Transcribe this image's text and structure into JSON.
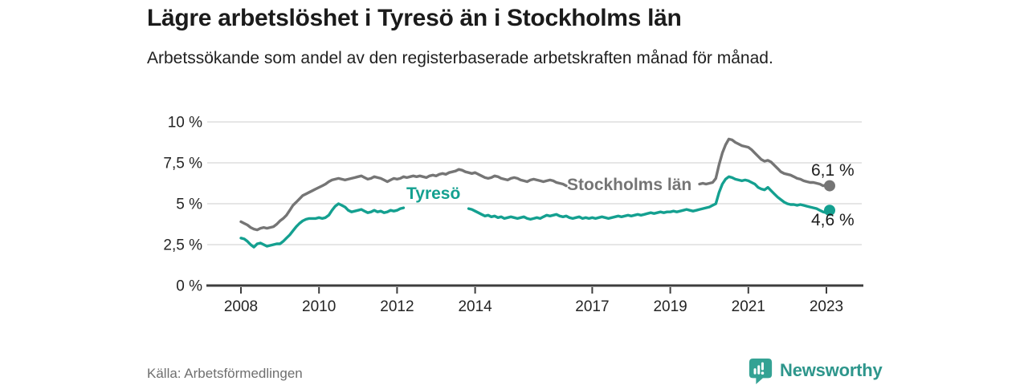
{
  "header": {
    "title": "Lägre arbetslöshet i Tyresö än i Stockholms län",
    "subtitle": "Arbetssökande som andel av den registerbaserade arbetskraften månad för månad."
  },
  "footer": {
    "source": "Källa: Arbetsförmedlingen",
    "logo_text": "Newsworthy",
    "logo_icon": "newsworthy-chart-bubble-icon"
  },
  "colors": {
    "tyreso_line": "#14A090",
    "stockholm_line": "#757575",
    "axis": "#3d3d3d",
    "grid": "#d8d8d8",
    "title_text": "#1b1b1b",
    "muted_text": "#6f6f6f",
    "logo_teal": "#2E968C"
  },
  "chart_data": {
    "type": "line",
    "title": "Lägre arbetslöshet i Tyresö än i Stockholms län",
    "subtitle": "Arbetssökande som andel av den registerbaserade arbetskraften månad för månad.",
    "x_start": {
      "year": 2008,
      "month": 1
    },
    "x_step_months": 1,
    "grid": "horizontal",
    "legend": "inline-labels",
    "style": {
      "grid_color": "#d8d8d8",
      "axis_color": "#3d3d3d",
      "tick_text_color": "#242424"
    },
    "y_axis": {
      "range": [
        0,
        10
      ],
      "ticks": [
        0,
        2.5,
        5,
        7.5,
        10
      ],
      "tick_labels": [
        "0 %",
        "2,5 %",
        "5 %",
        "7,5 %",
        "10 %"
      ]
    },
    "x_axis": {
      "range_years": [
        2007.1,
        2023.95
      ],
      "tick_years": [
        2008,
        2010,
        2012,
        2014,
        2017,
        2019,
        2021,
        2023
      ],
      "tick_labels": [
        "2008",
        "2010",
        "2012",
        "2014",
        "2017",
        "2019",
        "2021",
        "2023"
      ]
    },
    "series": [
      {
        "id": "stockholm",
        "name": "Stockholms län",
        "color": "#757575",
        "end_value": 6.1,
        "end_label": "6,1 %",
        "hidden_behind_label_indices": [
          101,
          140
        ],
        "values": [
          3.9,
          3.8,
          3.7,
          3.55,
          3.45,
          3.4,
          3.5,
          3.55,
          3.5,
          3.55,
          3.6,
          3.75,
          3.95,
          4.1,
          4.3,
          4.6,
          4.9,
          5.1,
          5.3,
          5.5,
          5.6,
          5.7,
          5.8,
          5.9,
          6.0,
          6.1,
          6.2,
          6.35,
          6.45,
          6.5,
          6.55,
          6.5,
          6.45,
          6.5,
          6.55,
          6.6,
          6.65,
          6.7,
          6.6,
          6.5,
          6.55,
          6.65,
          6.6,
          6.55,
          6.45,
          6.35,
          6.45,
          6.55,
          6.5,
          6.55,
          6.65,
          6.6,
          6.65,
          6.7,
          6.65,
          6.7,
          6.65,
          6.6,
          6.7,
          6.75,
          6.7,
          6.8,
          6.85,
          6.8,
          6.9,
          6.95,
          7.0,
          7.1,
          7.05,
          6.95,
          6.9,
          6.85,
          6.9,
          6.8,
          6.7,
          6.6,
          6.55,
          6.6,
          6.7,
          6.65,
          6.55,
          6.5,
          6.45,
          6.55,
          6.6,
          6.55,
          6.45,
          6.4,
          6.35,
          6.45,
          6.5,
          6.45,
          6.4,
          6.35,
          6.4,
          6.45,
          6.4,
          6.3,
          6.25,
          6.2,
          6.1,
          6.05,
          6.0,
          6.0,
          5.95,
          6.0,
          6.0,
          5.95,
          6.0,
          5.95,
          6.0,
          6.05,
          6.0,
          5.95,
          6.0,
          6.05,
          6.0,
          6.0,
          6.05,
          6.0,
          6.0,
          6.05,
          6.0,
          6.0,
          6.05,
          6.1,
          6.05,
          6.0,
          6.05,
          6.1,
          6.1,
          6.05,
          6.1,
          6.1,
          6.05,
          6.1,
          6.15,
          6.1,
          6.15,
          6.2,
          6.15,
          6.2,
          6.25,
          6.2,
          6.25,
          6.3,
          6.55,
          7.4,
          8.1,
          8.6,
          8.95,
          8.9,
          8.75,
          8.65,
          8.55,
          8.5,
          8.45,
          8.3,
          8.1,
          7.9,
          7.7,
          7.6,
          7.65,
          7.55,
          7.35,
          7.15,
          6.95,
          6.85,
          6.8,
          6.75,
          6.65,
          6.55,
          6.5,
          6.4,
          6.35,
          6.3,
          6.3,
          6.25,
          6.2,
          6.1,
          6.15,
          6.1
        ]
      },
      {
        "id": "tyreso",
        "name": "Tyresö",
        "color": "#14A090",
        "end_value": 4.6,
        "end_label": "4,6 %",
        "hidden_behind_label_indices": [
          51,
          69
        ],
        "values": [
          2.9,
          2.85,
          2.7,
          2.5,
          2.35,
          2.55,
          2.6,
          2.5,
          2.4,
          2.45,
          2.5,
          2.55,
          2.55,
          2.7,
          2.9,
          3.1,
          3.35,
          3.6,
          3.8,
          3.95,
          4.05,
          4.1,
          4.1,
          4.1,
          4.15,
          4.1,
          4.15,
          4.3,
          4.6,
          4.85,
          5.0,
          4.9,
          4.8,
          4.6,
          4.5,
          4.55,
          4.6,
          4.65,
          4.55,
          4.45,
          4.5,
          4.6,
          4.5,
          4.55,
          4.45,
          4.5,
          4.6,
          4.55,
          4.6,
          4.7,
          4.75,
          4.8,
          4.8,
          4.85,
          4.85,
          4.9,
          4.9,
          4.85,
          4.9,
          4.85,
          4.9,
          4.85,
          4.9,
          4.85,
          4.8,
          4.8,
          4.75,
          4.8,
          4.75,
          4.75,
          4.7,
          4.65,
          4.55,
          4.45,
          4.35,
          4.25,
          4.3,
          4.2,
          4.25,
          4.15,
          4.2,
          4.1,
          4.15,
          4.2,
          4.15,
          4.1,
          4.15,
          4.2,
          4.1,
          4.05,
          4.1,
          4.15,
          4.1,
          4.2,
          4.3,
          4.25,
          4.3,
          4.35,
          4.25,
          4.2,
          4.25,
          4.15,
          4.1,
          4.15,
          4.2,
          4.1,
          4.15,
          4.1,
          4.15,
          4.1,
          4.15,
          4.2,
          4.15,
          4.1,
          4.15,
          4.2,
          4.25,
          4.2,
          4.25,
          4.3,
          4.25,
          4.3,
          4.35,
          4.3,
          4.35,
          4.4,
          4.45,
          4.4,
          4.45,
          4.5,
          4.45,
          4.5,
          4.5,
          4.55,
          4.5,
          4.55,
          4.6,
          4.65,
          4.6,
          4.55,
          4.6,
          4.65,
          4.7,
          4.75,
          4.8,
          4.9,
          5.0,
          5.7,
          6.2,
          6.5,
          6.65,
          6.6,
          6.5,
          6.45,
          6.4,
          6.45,
          6.4,
          6.3,
          6.2,
          6.0,
          5.9,
          5.85,
          6.0,
          5.8,
          5.6,
          5.4,
          5.25,
          5.1,
          5.0,
          4.95,
          4.95,
          4.9,
          4.95,
          4.9,
          4.85,
          4.8,
          4.75,
          4.7,
          4.6,
          4.5,
          4.45,
          4.6
        ]
      }
    ]
  }
}
